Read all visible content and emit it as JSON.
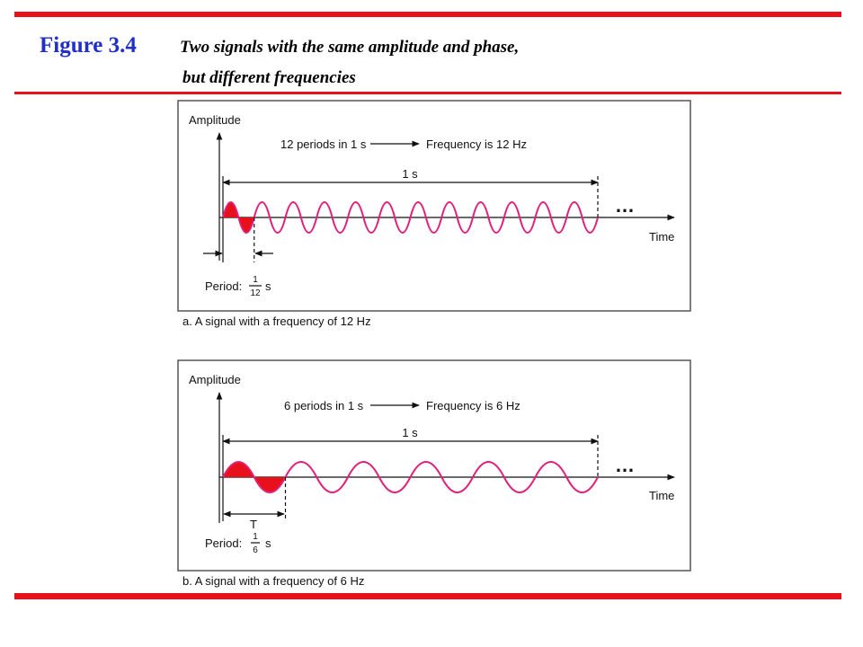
{
  "header": {
    "figure": "Figure 3.4",
    "title_line1": "Two signals with the same amplitude and phase,",
    "title_line2": "but different frequencies"
  },
  "panels": [
    {
      "axis_y": "Amplitude",
      "periods": "12 periods in 1 s",
      "frequency": "Frequency is 12 Hz",
      "span": "1 s",
      "ellipsis": "…",
      "axis_x": "Time",
      "period_label": "Period:",
      "period_num": "1",
      "period_den": "12",
      "period_unit": "s",
      "caption": "a. A signal with a frequency of 12 Hz"
    },
    {
      "axis_y": "Amplitude",
      "periods": "6 periods in 1 s",
      "frequency": "Frequency is 6 Hz",
      "span": "1 s",
      "ellipsis": "…",
      "axis_x": "Time",
      "period_marker": "T",
      "period_label": "Period:",
      "period_num": "1",
      "period_den": "6",
      "period_unit": "s",
      "caption": "b. A signal with a frequency of 6 Hz"
    }
  ]
}
